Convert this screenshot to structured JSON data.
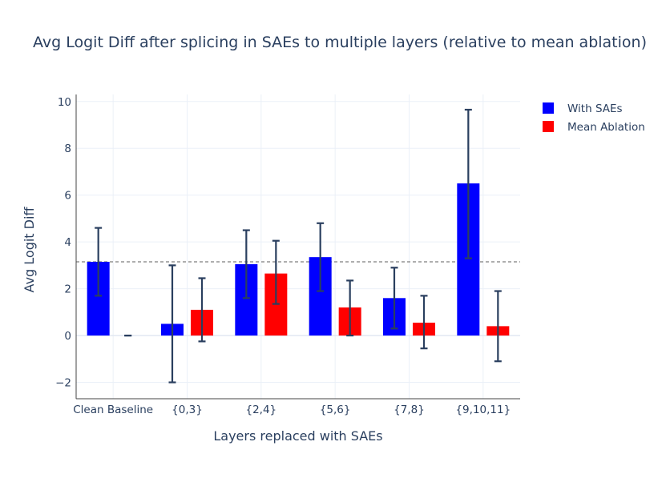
{
  "chart_data": {
    "type": "bar",
    "title": "Avg Logit Diff after splicing in SAEs to multiple layers (relative to mean ablation)",
    "xlabel": "Layers replaced with SAEs",
    "ylabel": "Avg Logit Diff",
    "categories": [
      "Clean Baseline",
      "{0,3}",
      "{2,4}",
      "{5,6}",
      "{7,8}",
      "{9,10,11}"
    ],
    "ylim": [
      -2.7,
      10.3
    ],
    "yticks": [
      -2,
      0,
      2,
      4,
      6,
      8,
      10
    ],
    "ytick_labels": [
      "−2",
      "0",
      "2",
      "4",
      "6",
      "8",
      "10"
    ],
    "grid": true,
    "legend_position": "top-right",
    "reference_line": {
      "y": 3.15,
      "style": "dashed"
    },
    "series": [
      {
        "name": "With SAEs",
        "color": "#0000ff",
        "values": [
          3.15,
          0.5,
          3.05,
          3.35,
          1.6,
          6.5
        ],
        "error_low": [
          1.7,
          -2.0,
          1.6,
          1.9,
          0.3,
          3.3
        ],
        "error_high": [
          4.6,
          3.0,
          4.5,
          4.8,
          2.9,
          9.65
        ]
      },
      {
        "name": "Mean Ablation",
        "color": "#ff0000",
        "values": [
          0.0,
          1.1,
          2.65,
          1.2,
          0.55,
          0.4
        ],
        "error_low": [
          0.0,
          -0.25,
          1.35,
          0.0,
          -0.55,
          -1.1
        ],
        "error_high": [
          0.0,
          2.45,
          4.05,
          2.35,
          1.7,
          1.9
        ]
      }
    ]
  },
  "colors": {
    "axis_text": "#2a3f5f",
    "grid": "#ebf0f8",
    "error_bar": "#2a3f5f",
    "reference_line": "#7f7f7f"
  }
}
